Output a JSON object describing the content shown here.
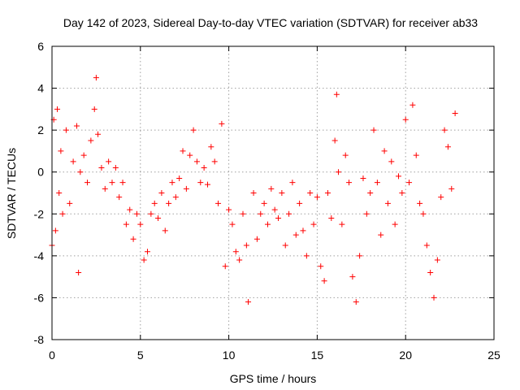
{
  "chart_data": {
    "type": "scatter",
    "title": "Day 142 of 2023, Sidereal Day-to-day VTEC variation (SDTVAR) for receiver ab33",
    "xlabel": "GPS time / hours",
    "ylabel": "SDTVAR / TECUs",
    "xlim": [
      0,
      25
    ],
    "ylim": [
      -8,
      6
    ],
    "x_ticks": [
      "0",
      "5",
      "10",
      "15",
      "20",
      "25"
    ],
    "y_ticks": [
      "-8",
      "-6",
      "-4",
      "-2",
      "0",
      "2",
      "4",
      "6"
    ],
    "grid": true,
    "marker": "+",
    "point_color": "#ff0000",
    "series": [
      {
        "name": "SDTVAR",
        "x": [
          0.0,
          0.1,
          0.2,
          0.3,
          0.4,
          0.5,
          0.6,
          0.8,
          1.0,
          1.2,
          1.4,
          1.5,
          1.6,
          1.8,
          2.0,
          2.2,
          2.4,
          2.5,
          2.6,
          2.8,
          3.0,
          3.2,
          3.4,
          3.6,
          3.8,
          4.0,
          4.2,
          4.4,
          4.6,
          4.8,
          5.0,
          5.2,
          5.4,
          5.6,
          5.8,
          6.0,
          6.2,
          6.4,
          6.6,
          6.8,
          7.0,
          7.2,
          7.4,
          7.6,
          7.8,
          8.0,
          8.2,
          8.4,
          8.6,
          8.8,
          9.0,
          9.2,
          9.4,
          9.6,
          9.8,
          10.0,
          10.2,
          10.4,
          10.6,
          10.8,
          11.0,
          11.1,
          11.4,
          11.6,
          11.8,
          12.0,
          12.2,
          12.4,
          12.6,
          12.8,
          13.0,
          13.2,
          13.4,
          13.6,
          13.8,
          14.0,
          14.2,
          14.4,
          14.6,
          14.8,
          15.0,
          15.2,
          15.4,
          15.6,
          15.8,
          16.0,
          16.1,
          16.2,
          16.4,
          16.6,
          16.8,
          17.0,
          17.2,
          17.4,
          17.6,
          17.8,
          18.0,
          18.2,
          18.4,
          18.6,
          18.8,
          19.0,
          19.2,
          19.4,
          19.6,
          19.8,
          20.0,
          20.2,
          20.4,
          20.6,
          20.8,
          21.0,
          21.2,
          21.4,
          21.6,
          21.8,
          22.0,
          22.2,
          22.4,
          22.6,
          22.8
        ],
        "y": [
          -3.5,
          2.5,
          -2.8,
          3.0,
          -1.0,
          1.0,
          -2.0,
          2.0,
          -1.5,
          0.5,
          2.2,
          -4.8,
          0.0,
          0.8,
          -0.5,
          1.5,
          3.0,
          4.5,
          1.8,
          0.2,
          -0.8,
          0.5,
          -0.5,
          0.2,
          -1.2,
          -0.5,
          -2.5,
          -1.8,
          -3.2,
          -2.0,
          -2.5,
          -4.2,
          -3.8,
          -2.0,
          -1.5,
          -2.2,
          -1.0,
          -2.8,
          -1.5,
          -0.5,
          -1.2,
          -0.3,
          1.0,
          -0.8,
          0.8,
          2.0,
          0.5,
          -0.5,
          0.2,
          -0.6,
          1.2,
          0.5,
          -1.5,
          2.3,
          -4.5,
          -1.8,
          -2.5,
          -3.8,
          -4.2,
          -2.0,
          -3.5,
          -6.2,
          -1.0,
          -3.2,
          -2.0,
          -1.5,
          -2.5,
          -0.8,
          -1.8,
          -2.2,
          -1.0,
          -3.5,
          -2.0,
          -0.5,
          -3.0,
          -1.5,
          -2.8,
          -4.0,
          -1.0,
          -2.5,
          -1.2,
          -4.5,
          -5.2,
          -1.0,
          -2.2,
          1.5,
          3.7,
          0.0,
          -2.5,
          0.8,
          -0.5,
          -5.0,
          -6.2,
          -4.0,
          -0.3,
          -2.0,
          -1.0,
          2.0,
          -0.5,
          -3.0,
          1.0,
          -1.5,
          0.5,
          -2.5,
          -0.2,
          -1.0,
          2.5,
          -0.5,
          3.2,
          0.8,
          -1.5,
          -2.0,
          -3.5,
          -4.8,
          -6.0,
          -4.2,
          -1.2,
          2.0,
          1.2,
          -0.8,
          2.8
        ]
      }
    ]
  }
}
